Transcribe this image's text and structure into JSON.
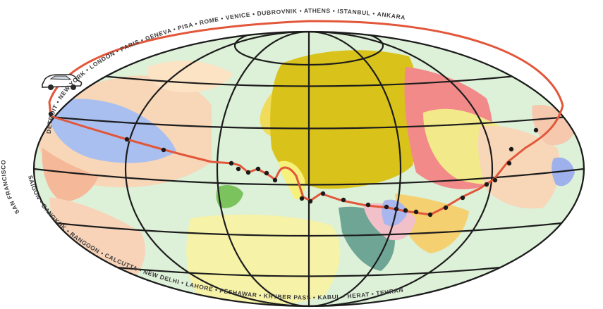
{
  "map": {
    "title": "",
    "colors": {
      "ocean": "#ddf0d8",
      "route": "#e2563a",
      "grid": "#1c1c1c",
      "usa": "#a9bff0",
      "europe": "#d9c21a",
      "russia_region": "#f28a8a",
      "south_asia": "#f5d070",
      "africa": "#f6f2a8",
      "middle_east": "#6fa595"
    },
    "icons": {
      "car": "car-icon"
    },
    "cities_top": [
      "DETROIT",
      "NEW YORK",
      "LONDON",
      "PARIS",
      "GENEVA",
      "PISA",
      "ROME",
      "VENICE",
      "DUBROVNIK",
      "ATHENS",
      "ISTANBUL",
      "ANKARA"
    ],
    "cities_left": [
      "SAN FRANCISCO"
    ],
    "cities_bottom": [
      "SAIGON",
      "BANGKOK",
      "RANGOON",
      "CALCUTTA",
      "NEW DELHI",
      "LAHORE",
      "PESHAWAR",
      "KHYBER PASS",
      "KABUL",
      "HERAT",
      "TEHRAN"
    ]
  }
}
